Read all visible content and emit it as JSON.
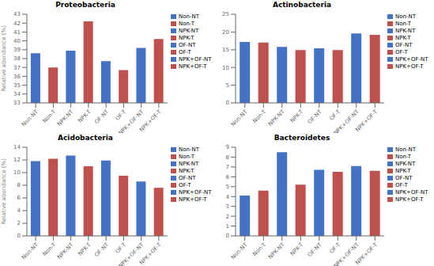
{
  "chart_data": [
    {
      "type": "bar",
      "title": "Proteobacteria",
      "categories": [
        "Non-NT",
        "Non-T",
        "NPK-NT",
        "NPK-T",
        "OF-NT",
        "OF-T",
        "NPK+OF-NT",
        "NPK+OF-T"
      ],
      "values": [
        38.6,
        37.0,
        38.9,
        42.2,
        37.7,
        36.7,
        39.2,
        40.2
      ],
      "colors": [
        "#4472C4",
        "#C0504D",
        "#4472C4",
        "#C0504D",
        "#4472C4",
        "#C0504D",
        "#4472C4",
        "#C0504D"
      ],
      "ylabel": "Relative abundance (%)",
      "ylim": [
        33,
        43
      ],
      "yticks": [
        33,
        34,
        35,
        36,
        37,
        38,
        39,
        40,
        41,
        42,
        43
      ],
      "legend": "right"
    },
    {
      "type": "bar",
      "title": "Actinobacteria",
      "categories": [
        "Non-NT",
        "Non-T",
        "NPK-NT",
        "NPK-T",
        "OF-NT",
        "OF-T",
        "NPK+OF-NT",
        "NPK+OF-T"
      ],
      "values": [
        17.2,
        17.0,
        15.8,
        14.9,
        15.4,
        14.9,
        19.6,
        19.2
      ],
      "colors": [
        "#4472C4",
        "#C0504D",
        "#4472C4",
        "#C0504D",
        "#4472C4",
        "#C0504D",
        "#4472C4",
        "#C0504D"
      ],
      "ylim": [
        0,
        25
      ],
      "yticks": [
        0,
        5,
        10,
        15,
        20,
        25
      ],
      "legend": "right"
    },
    {
      "type": "bar",
      "title": "Acidobacteria",
      "categories": [
        "Non-NT",
        "Non-T",
        "NPK-NT",
        "NPK-T",
        "OF-NT",
        "OF-T",
        "NPK+OF-NT",
        "NPK+OF-T"
      ],
      "values": [
        11.8,
        12.2,
        12.7,
        11.0,
        11.9,
        9.5,
        8.6,
        7.6
      ],
      "colors": [
        "#4472C4",
        "#C0504D",
        "#4472C4",
        "#C0504D",
        "#4472C4",
        "#C0504D",
        "#4472C4",
        "#C0504D"
      ],
      "ylabel": "Relative abundance (%)",
      "ylim": [
        0,
        14
      ],
      "yticks": [
        0,
        2,
        4,
        6,
        8,
        10,
        12,
        14
      ],
      "legend": "right"
    },
    {
      "type": "bar",
      "title": "Bacteroidetes",
      "categories": [
        "Non-NT",
        "Non-T",
        "NPK-NT",
        "NPK-T",
        "OF-NT",
        "OF-T",
        "NPK+OF-NT",
        "NPK+OF-T"
      ],
      "values": [
        4.1,
        4.6,
        8.5,
        5.2,
        6.7,
        6.5,
        7.1,
        6.6
      ],
      "colors": [
        "#4472C4",
        "#C0504D",
        "#4472C4",
        "#C0504D",
        "#4472C4",
        "#C0504D",
        "#4472C4",
        "#C0504D"
      ],
      "ylim": [
        0,
        9
      ],
      "yticks": [
        0,
        1,
        2,
        3,
        4,
        5,
        6,
        7,
        8,
        9
      ],
      "legend": "right"
    }
  ]
}
